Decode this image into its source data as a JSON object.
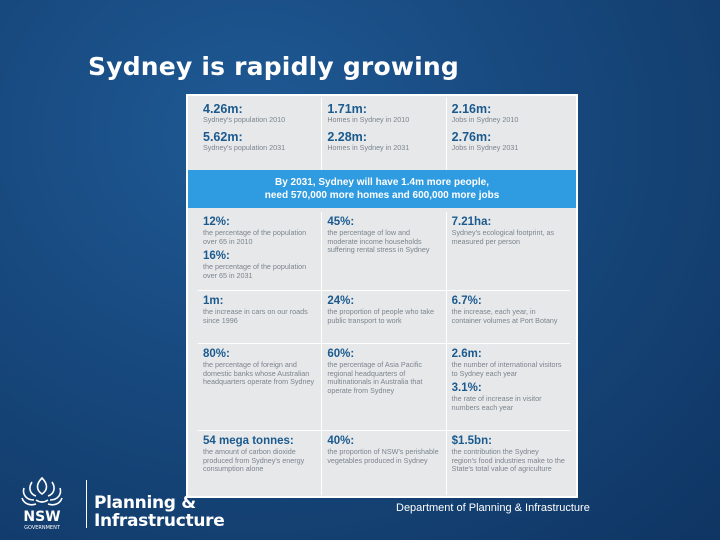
{
  "slide": {
    "title": "Sydney is rapidly growing",
    "department": "Department of Planning & Infrastructure"
  },
  "infographic": {
    "top": [
      [
        {
          "value": "4.26m:",
          "caption": "Sydney's population 2010"
        },
        {
          "value": "5.62m:",
          "caption": "Sydney's population 2031"
        }
      ],
      [
        {
          "value": "1.71m:",
          "caption": "Homes in Sydney in 2010"
        },
        {
          "value": "2.28m:",
          "caption": "Homes in Sydney in 2031"
        }
      ],
      [
        {
          "value": "2.16m:",
          "caption": "Jobs in Sydney 2010"
        },
        {
          "value": "2.76m:",
          "caption": "Jobs in Sydney 2031"
        }
      ]
    ],
    "banner": {
      "line1": "By 2031, Sydney will have 1.4m more people,",
      "line2": "need 570,000 more homes and 600,000 more jobs"
    },
    "rows": [
      [
        [
          {
            "value": "12%:",
            "caption": "the percentage of the population over 65 in 2010"
          },
          {
            "value": "16%:",
            "caption": "the percentage of the population over 65 in 2031"
          }
        ],
        [
          {
            "value": "45%:",
            "caption": "the percentage of low and moderate income households suffering rental stress in Sydney"
          }
        ],
        [
          {
            "value": "7.21ha:",
            "caption": "Sydney's ecological footprint, as measured per person"
          }
        ]
      ],
      [
        [
          {
            "value": "1m:",
            "caption": "the increase in cars on our roads since 1996"
          }
        ],
        [
          {
            "value": "24%:",
            "caption": "the proportion of people who take public transport to work"
          }
        ],
        [
          {
            "value": "6.7%:",
            "caption": "the increase, each year, in container volumes at Port Botany"
          }
        ]
      ],
      [
        [
          {
            "value": "80%:",
            "caption": "the percentage of foreign and domestic banks whose Australian headquarters operate from Sydney"
          }
        ],
        [
          {
            "value": "60%:",
            "caption": "the percentage of Asia Pacific regional headquarters of multinationals in Australia that operate from Sydney"
          }
        ],
        [
          {
            "value": "2.6m:",
            "caption": "the number of international visitors to Sydney each year"
          },
          {
            "value": "3.1%:",
            "caption": "the rate of increase in visitor numbers each year"
          }
        ]
      ],
      [
        [
          {
            "value": "54 mega tonnes:",
            "caption": "the amount of carbon dioxide produced from Sydney's energy consumption alone"
          }
        ],
        [
          {
            "value": "40%:",
            "caption": "the proportion of NSW's perishable vegetables produced in Sydney"
          }
        ],
        [
          {
            "value": "$1.5bn:",
            "caption": "the contribution the Sydney region's food industries make to the State's total value of agriculture"
          }
        ]
      ]
    ]
  },
  "logo": {
    "emblem_text": "NSW",
    "emblem_subtext": "GOVERNMENT",
    "line1": "Planning &",
    "line2": "Infrastructure"
  },
  "colors": {
    "background": "#17487d",
    "banner": "#2f9be0",
    "value_text": "#1b5a8e",
    "caption_text": "#7c858d"
  }
}
